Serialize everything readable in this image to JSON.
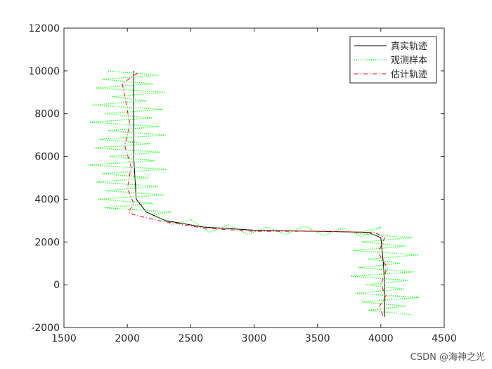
{
  "chart_data": {
    "type": "line",
    "xlim": [
      1500,
      4500
    ],
    "xticks": [
      1500,
      2000,
      2500,
      3000,
      3500,
      4000,
      4500
    ],
    "ylim": [
      -2000,
      12000
    ],
    "yticks": [
      -2000,
      0,
      2000,
      4000,
      6000,
      8000,
      10000,
      12000
    ],
    "legend": "upper right",
    "series": [
      {
        "name": "真实轨迹",
        "color": "#000000",
        "style": "solid",
        "x": [
          2050,
          2050,
          2050,
          2070,
          2150,
          2300,
          2600,
          3000,
          3500,
          3900,
          4000,
          4020,
          4030,
          4030
        ],
        "values": [
          10000,
          8000,
          6000,
          4000,
          3400,
          3000,
          2700,
          2550,
          2500,
          2450,
          2200,
          1000,
          0,
          -1500
        ]
      },
      {
        "name": "观测样本",
        "color": "#00ff00",
        "style": "dotted",
        "x": [
          1850,
          2250,
          1800,
          2200,
          1750,
          2300,
          1880,
          2150,
          1720,
          2280,
          1820,
          2200,
          1700,
          2250,
          1850,
          2300,
          1780,
          2180,
          1740,
          2260,
          1860,
          2220,
          1690,
          2310,
          1800,
          2170,
          1760,
          2240,
          1830,
          2290,
          1770,
          2200,
          1820,
          2350,
          2200,
          2350,
          2500,
          2650,
          2800,
          2950,
          3100,
          3250,
          3400,
          3550,
          3700,
          3850,
          4000,
          3800,
          4250,
          3850,
          4200,
          3780,
          4300,
          3900,
          4150,
          3820,
          4270,
          3760,
          4220,
          3880,
          4180,
          3800,
          4300,
          3850,
          4200,
          3900,
          4250
        ],
        "values": [
          10000,
          9800,
          9600,
          9400,
          9200,
          9000,
          8800,
          8600,
          8400,
          8200,
          8000,
          7800,
          7600,
          7400,
          7200,
          7000,
          6800,
          6600,
          6400,
          6200,
          6000,
          5800,
          5600,
          5400,
          5200,
          5000,
          4800,
          4600,
          4400,
          4200,
          4000,
          3800,
          3600,
          3400,
          3300,
          2800,
          3050,
          2450,
          2800,
          2350,
          2700,
          2350,
          2750,
          2300,
          2650,
          2250,
          2700,
          2400,
          2200,
          2000,
          1800,
          1600,
          1400,
          1200,
          1000,
          800,
          600,
          400,
          200,
          0,
          -200,
          -400,
          -600,
          -800,
          -1000,
          -1200,
          -1400
        ]
      },
      {
        "name": "估计轨迹",
        "color": "#ff0000",
        "style": "dashdot",
        "x": [
          2080,
          1960,
          1990,
          2020,
          1980,
          2030,
          2000,
          2050,
          2010,
          2040,
          2100,
          2250,
          2600,
          3000,
          3500,
          3950,
          4030,
          3980,
          4050,
          4000,
          4040,
          3990,
          4020
        ],
        "values": [
          9900,
          9400,
          8500,
          7500,
          6500,
          5500,
          4500,
          3800,
          3400,
          3300,
          3200,
          3000,
          2650,
          2500,
          2500,
          2450,
          2200,
          1500,
          800,
          0,
          -500,
          -1000,
          -1500
        ]
      }
    ]
  },
  "watermark": "CSDN @海神之光"
}
